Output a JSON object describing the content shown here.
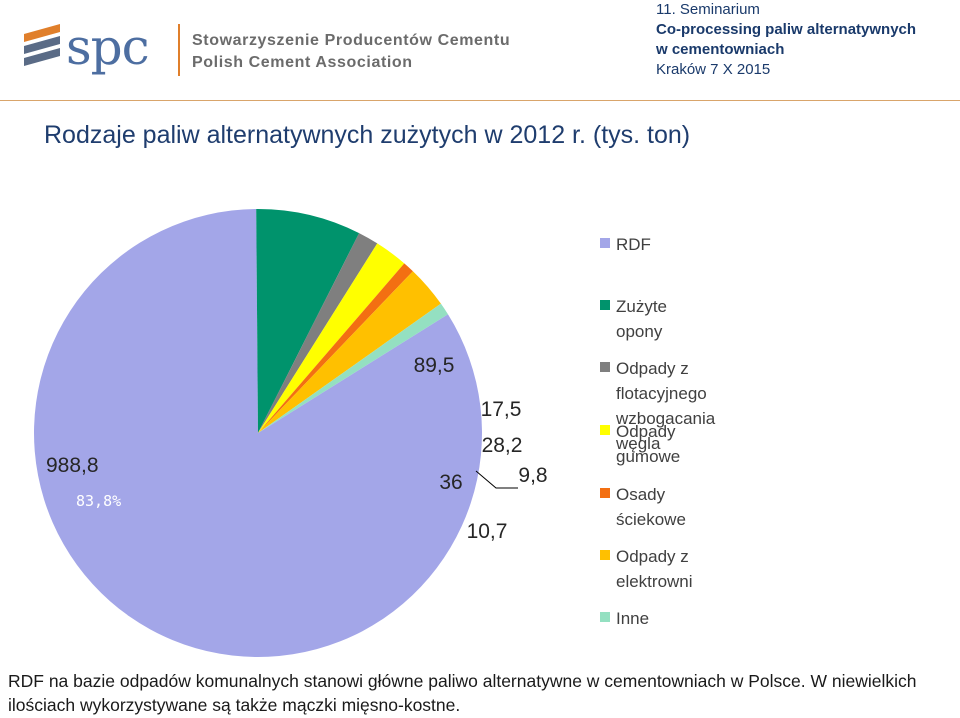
{
  "header": {
    "logo_text": "spc",
    "org_line1": "Stowarzyszenie Producentów Cementu",
    "org_line2": "Polish Cement Association",
    "event_line1": "11. Seminarium",
    "event_line2": "Co-processing paliw alternatywnych",
    "event_line3": "w cementowniach",
    "event_line4": "Kraków 7 X 2015"
  },
  "slide_title": "Rodzaje paliw alternatywnych zużytych w 2012 r. (tys. ton)",
  "note": "RDF na bazie odpadów komunalnych stanowi główne paliwo alternatywne w cementowniach w Polsce. W niewielkich ilościach wykorzystywane są także mączki mięsno-kostne.",
  "chart_data": {
    "type": "pie",
    "title": "",
    "slices": [
      {
        "label": "RDF",
        "value": 988.8,
        "value_label": "988,8",
        "percent_label": "83,8%",
        "color": "#a3a6e8"
      },
      {
        "label": "Zużyte opony",
        "value": 89.5,
        "value_label": "89,5",
        "color": "#00936c"
      },
      {
        "label": "Odpady z flotacyjnego\nwzbogacania węgla",
        "value": 17.5,
        "value_label": "17,5",
        "color": "#7f7f7f"
      },
      {
        "label": "Odpady gumowe",
        "value": 28.2,
        "value_label": "28,2",
        "color": "#ffff00"
      },
      {
        "label": "Osady ściekowe",
        "value": 9.8,
        "value_label": "9,8",
        "color": "#f36f12"
      },
      {
        "label": "Odpady z elektrowni",
        "value": 36,
        "value_label": "36",
        "color": "#ffc000"
      },
      {
        "label": "Inne",
        "value": 10.7,
        "value_label": "10,7",
        "color": "#94e0c1"
      }
    ],
    "legend_position": "right"
  }
}
